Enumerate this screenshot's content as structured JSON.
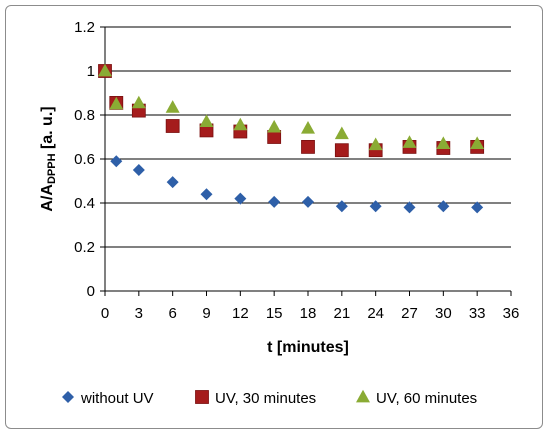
{
  "chart_data": {
    "type": "scatter",
    "xlabel": "t [minutes]",
    "ylabel_main": "A/A",
    "ylabel_sub": "DPPH",
    "ylabel_unit": " [a. u.]",
    "xlim": [
      0,
      36
    ],
    "ylim": [
      0,
      1.2
    ],
    "x_ticks": [
      "0",
      "3",
      "6",
      "9",
      "12",
      "15",
      "18",
      "21",
      "24",
      "27",
      "30",
      "33",
      "36"
    ],
    "y_ticks": [
      "0",
      "0.2",
      "0.4",
      "0.6",
      "0.8",
      "1",
      "1.2"
    ],
    "grid": "horizontal",
    "legend_position": "bottom",
    "series": [
      {
        "name": "without UV",
        "marker": "diamond",
        "color": "#2e5fa8",
        "x": [
          0,
          1,
          3,
          6,
          9,
          12,
          15,
          18,
          21,
          24,
          27,
          30,
          33
        ],
        "y": [
          1.0,
          0.59,
          0.55,
          0.495,
          0.44,
          0.42,
          0.405,
          0.405,
          0.385,
          0.385,
          0.38,
          0.385,
          0.38
        ]
      },
      {
        "name": "UV, 30 minutes",
        "marker": "square",
        "color": "#a51c1c",
        "x": [
          0,
          1,
          3,
          6,
          9,
          12,
          15,
          18,
          21,
          24,
          27,
          30,
          33
        ],
        "y": [
          1.0,
          0.855,
          0.82,
          0.75,
          0.73,
          0.725,
          0.7,
          0.655,
          0.64,
          0.64,
          0.655,
          0.65,
          0.655
        ]
      },
      {
        "name": "UV, 60 minutes",
        "marker": "triangle",
        "color": "#8aab34",
        "x": [
          0,
          1,
          3,
          6,
          9,
          12,
          15,
          18,
          21,
          24,
          27,
          30,
          33
        ],
        "y": [
          1.0,
          0.85,
          0.855,
          0.835,
          0.77,
          0.755,
          0.745,
          0.74,
          0.715,
          0.665,
          0.675,
          0.67,
          0.67
        ]
      }
    ]
  }
}
